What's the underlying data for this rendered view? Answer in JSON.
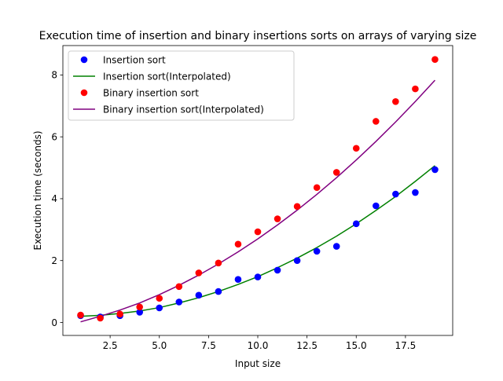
{
  "chart_data": {
    "type": "scatter",
    "title": "Execution time of insertion and binary insertions sorts on arrays of varying size",
    "xlabel": "Input size",
    "ylabel": "Execution time (seconds)",
    "xlim": [
      0.1,
      19.9
    ],
    "ylim": [
      -0.42,
      8.95
    ],
    "xticks": [
      2.5,
      5.0,
      7.5,
      10.0,
      12.5,
      15.0,
      17.5
    ],
    "xtick_labels": [
      "2.5",
      "5.0",
      "7.5",
      "10.0",
      "12.5",
      "15.0",
      "17.5"
    ],
    "yticks": [
      0,
      2,
      4,
      6,
      8
    ],
    "ytick_labels": [
      "0",
      "2",
      "4",
      "6",
      "8"
    ],
    "grid": false,
    "legend_position": "top-left",
    "series": [
      {
        "name": "Insertion sort",
        "kind": "scatter",
        "color": "#0000ff",
        "x": [
          1,
          2,
          3,
          4,
          5,
          6,
          7,
          8,
          9,
          10,
          11,
          12,
          13,
          14,
          15,
          16,
          17,
          18,
          19
        ],
        "y": [
          0.22,
          0.18,
          0.22,
          0.33,
          0.47,
          0.66,
          0.88,
          1.0,
          1.39,
          1.47,
          1.69,
          2.0,
          2.3,
          2.46,
          3.19,
          3.77,
          4.15,
          4.2,
          4.94
        ]
      },
      {
        "name": "Insertion sort(Interpolated)",
        "kind": "line",
        "color": "#008000",
        "fit": "quadratic",
        "x": [
          1,
          2,
          3,
          4,
          5,
          6,
          7,
          8,
          9,
          10,
          11,
          12,
          13,
          14,
          15,
          16,
          17,
          18,
          19
        ],
        "y": [
          0.2,
          0.23,
          0.29,
          0.37,
          0.48,
          0.63,
          0.8,
          1.0,
          1.23,
          1.48,
          1.77,
          2.08,
          2.42,
          2.79,
          3.19,
          3.62,
          4.07,
          4.56,
          5.07
        ]
      },
      {
        "name": "Binary insertion sort",
        "kind": "scatter",
        "color": "#ff0000",
        "x": [
          1,
          2,
          3,
          4,
          5,
          6,
          7,
          8,
          9,
          10,
          11,
          12,
          13,
          14,
          15,
          16,
          17,
          18,
          19
        ],
        "y": [
          0.24,
          0.14,
          0.27,
          0.5,
          0.78,
          1.16,
          1.6,
          1.92,
          2.53,
          2.93,
          3.35,
          3.75,
          4.36,
          4.85,
          5.63,
          6.5,
          7.14,
          7.55,
          8.5
        ]
      },
      {
        "name": "Binary insertion sort(Interpolated)",
        "kind": "line",
        "color": "#800080",
        "fit": "quadratic",
        "x": [
          1,
          2,
          3,
          4,
          5,
          6,
          7,
          8,
          9,
          10,
          11,
          12,
          13,
          14,
          15,
          16,
          17,
          18,
          19
        ],
        "y": [
          0.02,
          0.2,
          0.4,
          0.63,
          0.9,
          1.2,
          1.53,
          1.89,
          2.28,
          2.7,
          3.15,
          3.63,
          4.14,
          4.68,
          5.25,
          5.85,
          6.48,
          7.14,
          7.83
        ]
      }
    ]
  }
}
